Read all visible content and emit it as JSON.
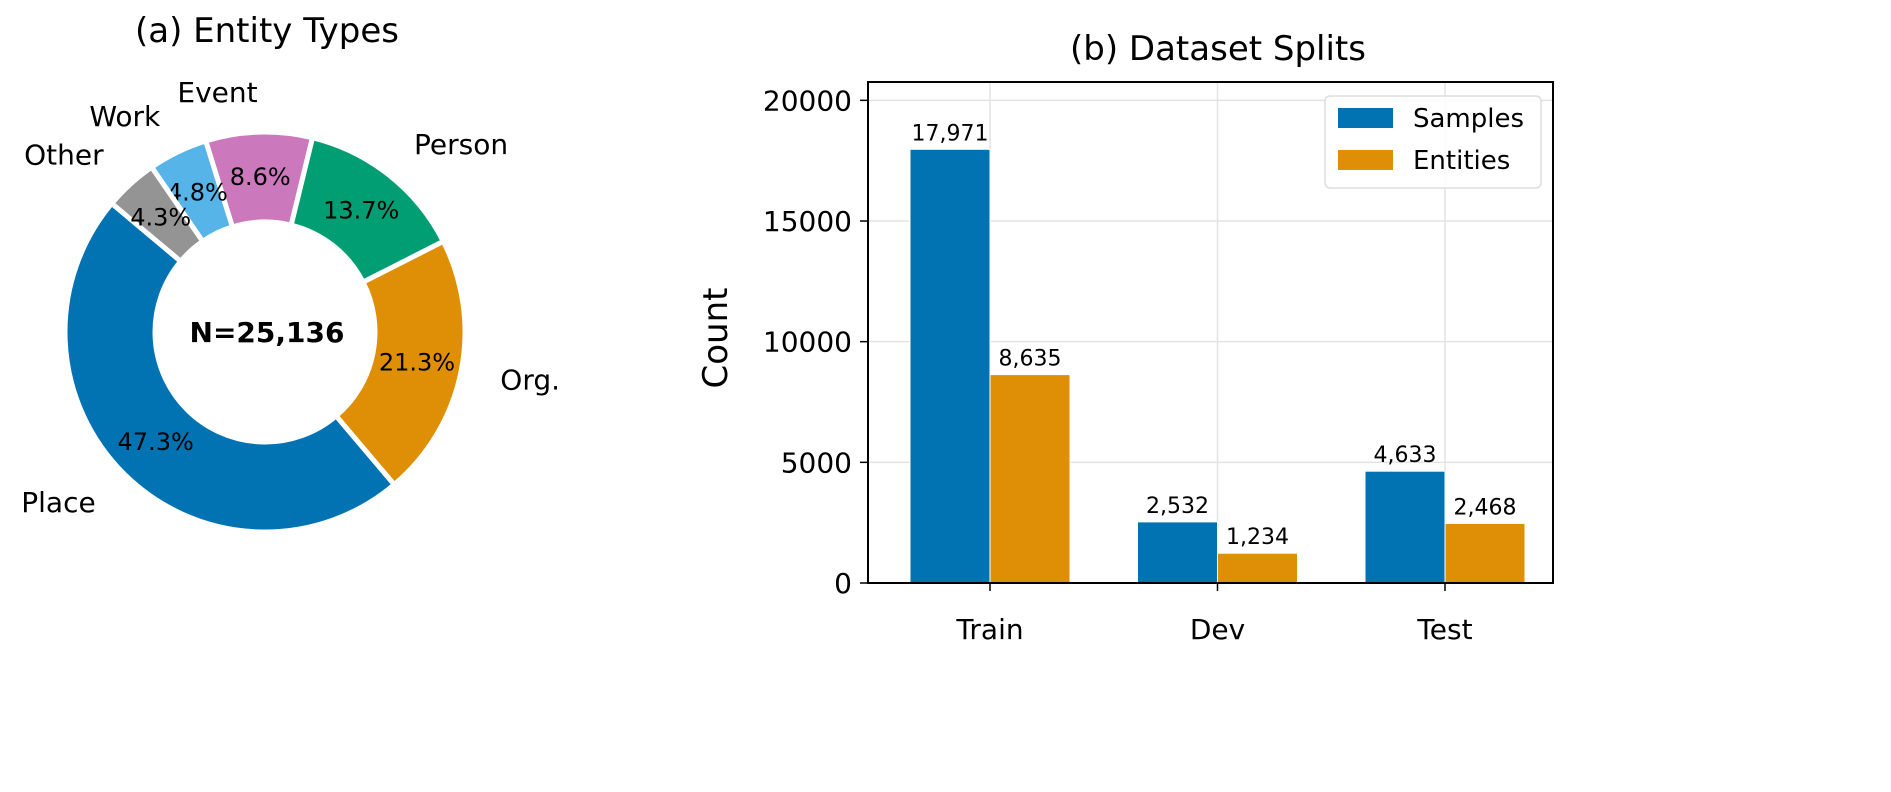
{
  "chart_data": [
    {
      "type": "pie",
      "title": "(a) Entity Types",
      "center_label": "N=25,136",
      "donut": true,
      "slices": [
        {
          "label": "Place",
          "value": 47.3,
          "pct_label": "47.3%",
          "color": "#0173B2"
        },
        {
          "label": "Org.",
          "value": 21.3,
          "pct_label": "21.3%",
          "color": "#DE8F05"
        },
        {
          "label": "Person",
          "value": 13.7,
          "pct_label": "13.7%",
          "color": "#029E73"
        },
        {
          "label": "Event",
          "value": 8.6,
          "pct_label": "8.6%",
          "color": "#CC78BC"
        },
        {
          "label": "Work",
          "value": 4.8,
          "pct_label": "4.8%",
          "color": "#56B4E9"
        },
        {
          "label": "Other",
          "value": 4.3,
          "pct_label": "4.3%",
          "color": "#949494"
        }
      ]
    },
    {
      "type": "bar",
      "title": "(b) Dataset Splits",
      "xlabel": "",
      "ylabel": "Count",
      "ylim": [
        0,
        20760
      ],
      "yticks": [
        0,
        5000,
        10000,
        15000,
        20000
      ],
      "grid": true,
      "legend": "top-right",
      "categories": [
        "Train",
        "Dev",
        "Test"
      ],
      "series": [
        {
          "name": "Samples",
          "color": "#0173B2",
          "values": [
            17971,
            2532,
            4633
          ],
          "labels": [
            "17,971",
            "2,532",
            "4,633"
          ]
        },
        {
          "name": "Entities",
          "color": "#DE8F05",
          "values": [
            8635,
            1234,
            2468
          ],
          "labels": [
            "8,635",
            "1,234",
            "2,468"
          ]
        }
      ]
    }
  ]
}
